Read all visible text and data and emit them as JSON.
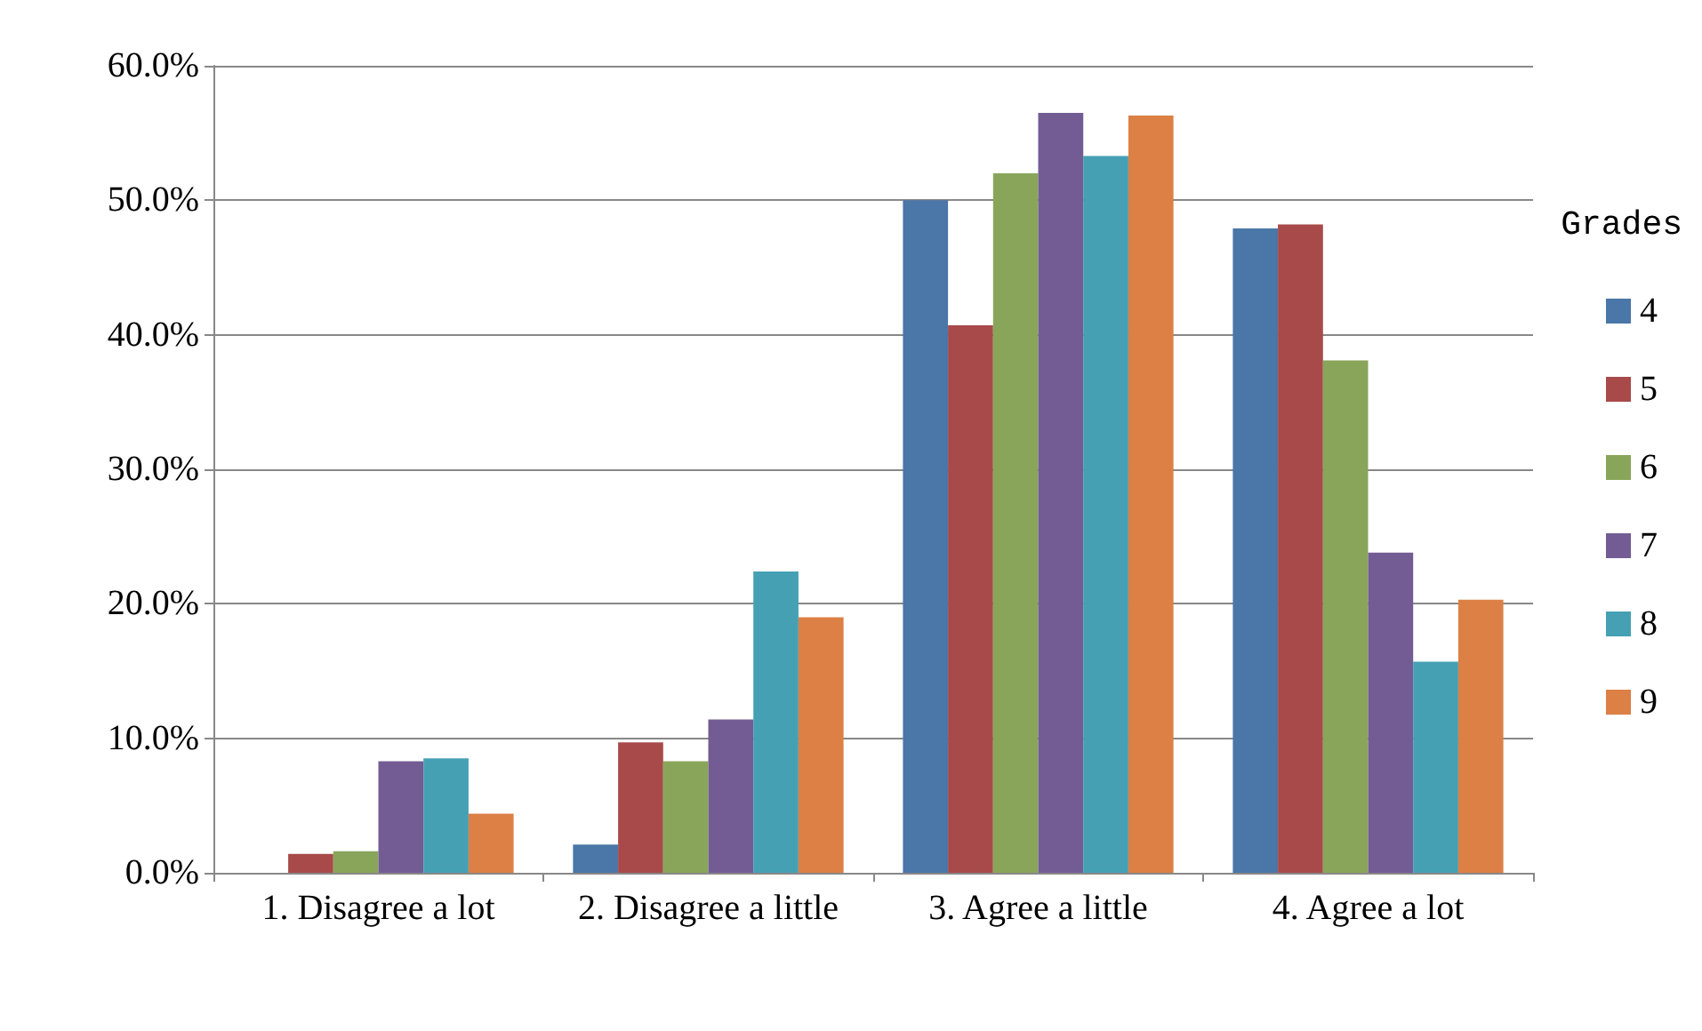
{
  "chart_data": {
    "type": "bar",
    "categories": [
      "1. Disagree a lot",
      "2. Disagree a little",
      "3. Agree a little",
      "4. Agree a lot"
    ],
    "series": [
      {
        "name": "4",
        "color": "#4a76a8",
        "values": [
          0,
          2.1,
          50.0,
          47.9
        ]
      },
      {
        "name": "5",
        "color": "#a84a4a",
        "values": [
          1.4,
          9.7,
          40.7,
          48.2
        ]
      },
      {
        "name": "6",
        "color": "#89a55a",
        "values": [
          1.6,
          8.3,
          52.0,
          38.1
        ]
      },
      {
        "name": "7",
        "color": "#735c94",
        "values": [
          8.3,
          11.4,
          56.5,
          23.8
        ]
      },
      {
        "name": "8",
        "color": "#45a0b4",
        "values": [
          8.5,
          22.4,
          53.3,
          15.7
        ]
      },
      {
        "name": "9",
        "color": "#dc8046",
        "values": [
          4.4,
          19.0,
          56.3,
          20.3
        ]
      }
    ],
    "legend_title": "Grades",
    "legend": "right",
    "ylim": [
      0,
      60
    ],
    "yticks": [
      {
        "value": 0,
        "label": "0.0%"
      },
      {
        "value": 10,
        "label": "10.0%"
      },
      {
        "value": 20,
        "label": "20.0%"
      },
      {
        "value": 30,
        "label": "30.0%"
      },
      {
        "value": 40,
        "label": "40.0%"
      },
      {
        "value": 50,
        "label": "50.0%"
      },
      {
        "value": 60,
        "label": "60.0%"
      }
    ],
    "grid": "y"
  }
}
